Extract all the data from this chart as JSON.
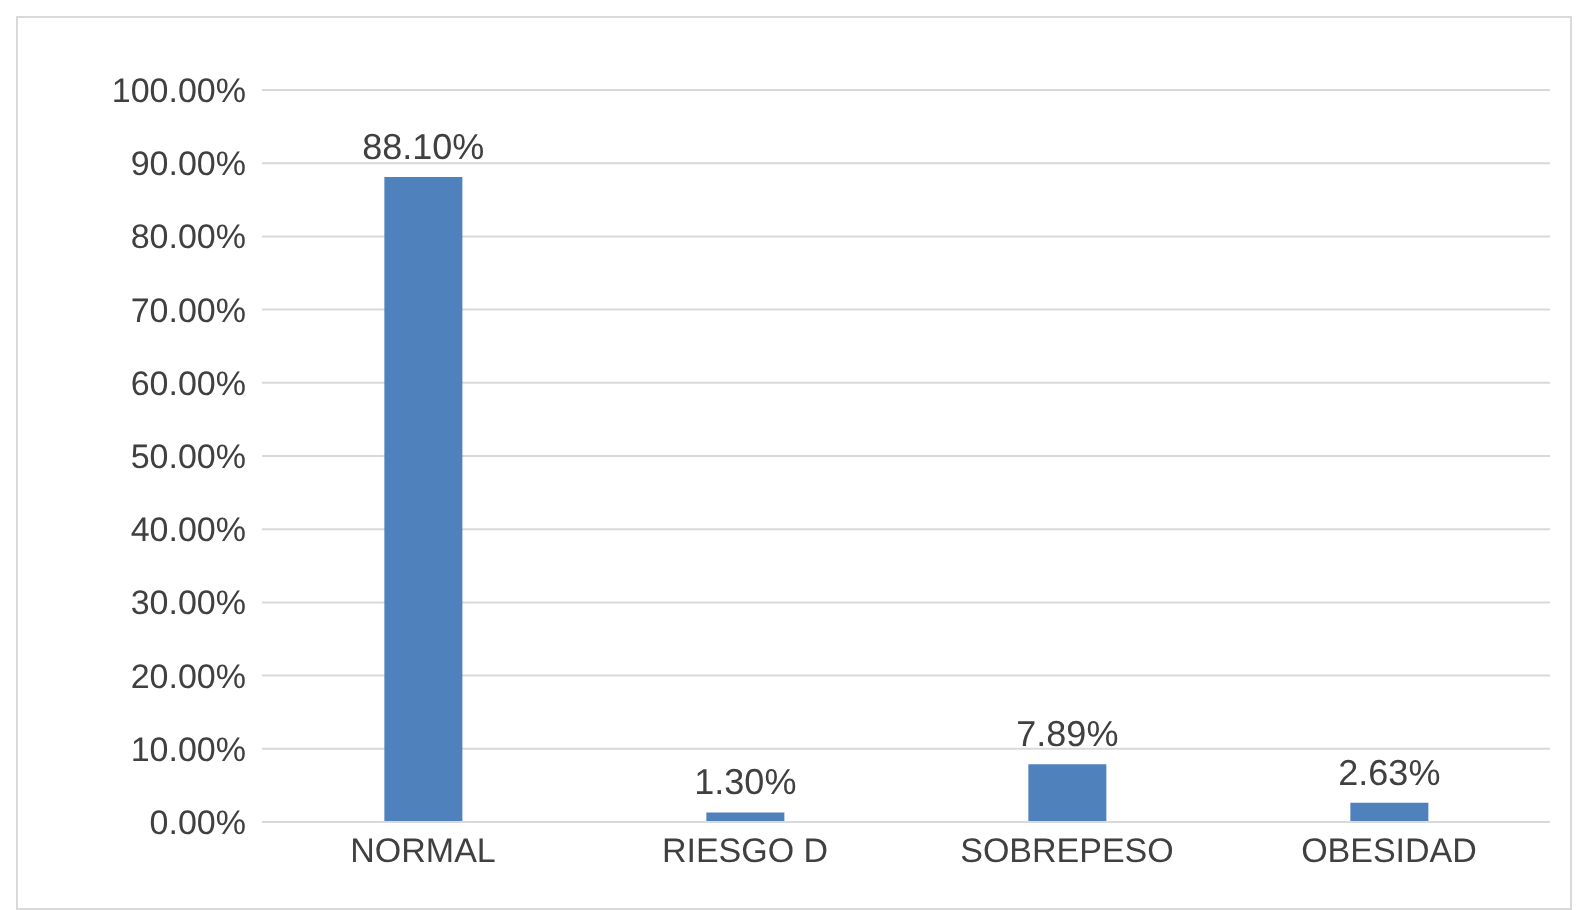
{
  "chart_data": {
    "type": "bar",
    "categories": [
      "NORMAL",
      "RIESGO D",
      "SOBREPESO",
      "OBESIDAD"
    ],
    "values": [
      88.1,
      1.3,
      7.89,
      2.63
    ],
    "value_labels": [
      "88.10%",
      "1.30%",
      "7.89%",
      "2.63%"
    ],
    "color": "#4f81bd",
    "ylim": [
      0,
      100
    ],
    "yticks": [
      {
        "value": 0,
        "label": "0.00%"
      },
      {
        "value": 10,
        "label": "10.00%"
      },
      {
        "value": 20,
        "label": "20.00%"
      },
      {
        "value": 30,
        "label": "30.00%"
      },
      {
        "value": 40,
        "label": "40.00%"
      },
      {
        "value": 50,
        "label": "50.00%"
      },
      {
        "value": 60,
        "label": "60.00%"
      },
      {
        "value": 70,
        "label": "70.00%"
      },
      {
        "value": 80,
        "label": "80.00%"
      },
      {
        "value": 90,
        "label": "90.00%"
      },
      {
        "value": 100,
        "label": "100.00%"
      }
    ],
    "grid": "y"
  }
}
